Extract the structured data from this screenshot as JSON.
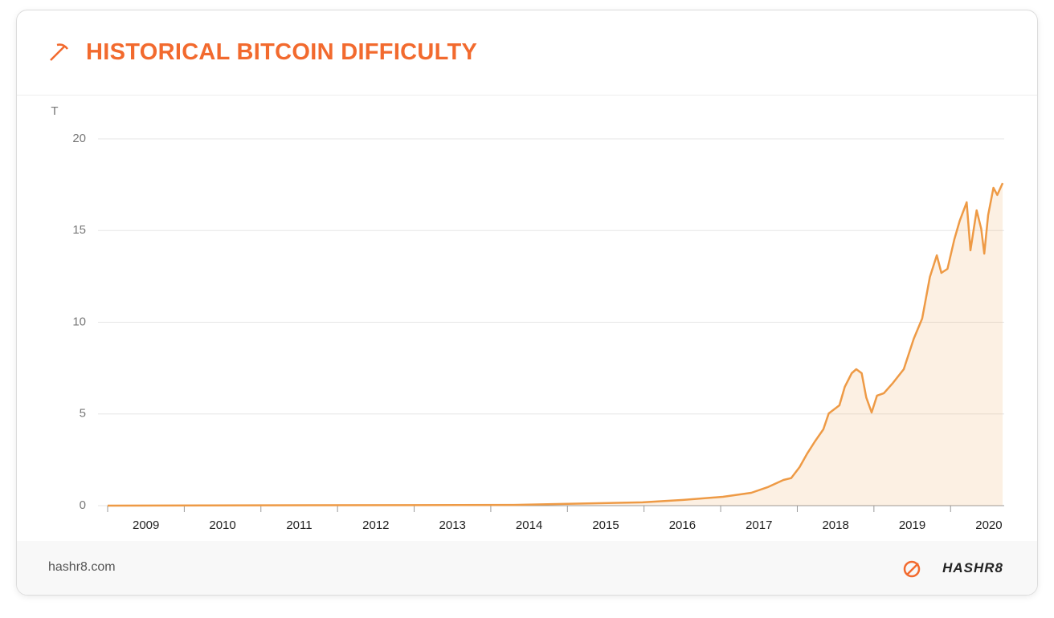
{
  "chart_data": {
    "type": "area",
    "title": "HISTORICAL BITCOIN DIFFICULTY",
    "y_unit": "T",
    "x": [
      2009,
      2014.3,
      2014.93,
      2015.98,
      2016.51,
      2017.03,
      2017.4,
      2017.61,
      2017.82,
      2017.92,
      2018.03,
      2018.13,
      2018.23,
      2018.34,
      2018.41,
      2018.55,
      2018.62,
      2018.71,
      2018.77,
      2018.84,
      2018.9,
      2018.97,
      2019.04,
      2019.13,
      2019.25,
      2019.39,
      2019.52,
      2019.63,
      2019.73,
      2019.82,
      2019.88,
      2019.96,
      2020.05,
      2020.12,
      2020.21,
      2020.26,
      2020.34,
      2020.4,
      2020.44,
      2020.49,
      2020.56,
      2020.61,
      2020.68
    ],
    "values": [
      0,
      0.04,
      0.09,
      0.18,
      0.31,
      0.48,
      0.7,
      1.0,
      1.4,
      1.5,
      2.1,
      2.85,
      3.5,
      4.16,
      5.03,
      5.47,
      6.48,
      7.22,
      7.44,
      7.22,
      5.9,
      5.08,
      6.0,
      6.13,
      6.7,
      7.44,
      9.1,
      10.2,
      12.47,
      13.65,
      12.69,
      12.91,
      14.53,
      15.54,
      16.54,
      13.92,
      16.1,
      15.1,
      13.74,
      15.84,
      17.33,
      16.94,
      17.59
    ],
    "color": "#ee9a45",
    "xlim": [
      2009,
      2020.7
    ],
    "xticks": [
      2009,
      2010,
      2011,
      2012,
      2013,
      2014,
      2015,
      2016,
      2017,
      2018,
      2019,
      2020
    ],
    "ylim": [
      0,
      20
    ],
    "yticks": [
      0,
      5,
      10,
      15,
      20
    ],
    "grid": true
  },
  "footer": {
    "site": "hashr8.com",
    "brand": "HASHR8"
  }
}
